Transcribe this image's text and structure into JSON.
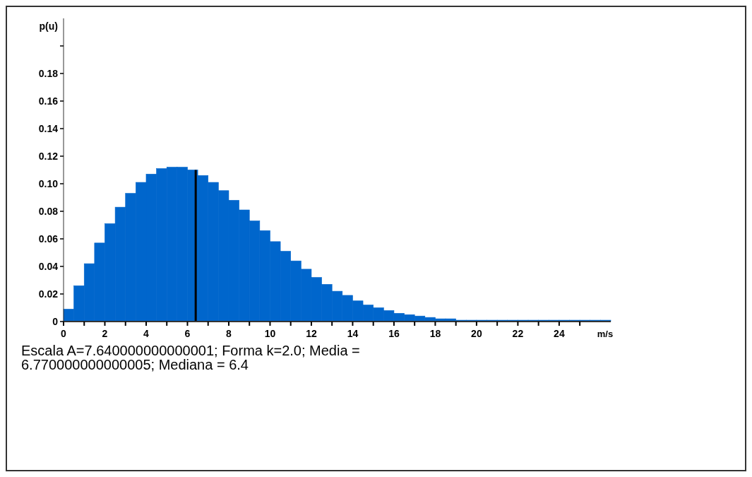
{
  "chart_data": {
    "type": "histogram",
    "xlabel": "m/s",
    "ylabel": "p(u)",
    "color": "#0066cc",
    "bins": [
      0,
      0.5,
      1,
      1.5,
      2,
      2.5,
      3,
      3.5,
      4,
      4.5,
      5,
      5.5,
      6,
      6.5,
      7,
      7.5,
      8,
      8.5,
      9,
      9.5,
      10,
      10.5,
      11,
      11.5,
      12,
      12.5,
      13,
      13.5,
      14,
      14.5,
      15,
      15.5,
      16,
      16.5,
      17,
      17.5,
      18,
      18.5,
      19,
      19.5,
      20,
      20.5,
      21,
      21.5,
      22,
      22.5,
      23,
      23.5,
      24,
      24.5,
      25,
      25.5,
      26,
      26.5
    ],
    "values": [
      0.009,
      0.026,
      0.042,
      0.057,
      0.071,
      0.083,
      0.093,
      0.101,
      0.107,
      0.111,
      0.112,
      0.112,
      0.11,
      0.106,
      0.101,
      0.095,
      0.088,
      0.081,
      0.073,
      0.066,
      0.058,
      0.051,
      0.044,
      0.038,
      0.032,
      0.027,
      0.022,
      0.019,
      0.015,
      0.012,
      0.01,
      0.008,
      0.006,
      0.005,
      0.004,
      0.003,
      0.002,
      0.002,
      0.001,
      0.001,
      0.001,
      0.001,
      0.001,
      0.001,
      0.001,
      0.001,
      0.001,
      0.001,
      0.001,
      0.001,
      0.001,
      0.001,
      0.001
    ],
    "xlim": [
      0,
      26.5
    ],
    "xticks": [
      0,
      {
        "value": 1,
        "label": null
      },
      2,
      {
        "value": 3,
        "label": null
      },
      4,
      {
        "value": 5,
        "label": null
      },
      6,
      {
        "value": 7,
        "label": null
      },
      8,
      {
        "value": 9,
        "label": null
      },
      10,
      {
        "value": 11,
        "label": null
      },
      12,
      {
        "value": 13,
        "label": null
      },
      14,
      {
        "value": 15,
        "label": null
      },
      16,
      {
        "value": 17,
        "label": null
      },
      18,
      {
        "value": 19,
        "label": null
      },
      20,
      {
        "value": 21,
        "label": null
      },
      22,
      {
        "value": 23,
        "label": null
      },
      24,
      {
        "value": 25,
        "label": null
      }
    ],
    "ylim": [
      0,
      0.22
    ],
    "yticks": [
      0,
      0.02,
      0.04,
      0.06,
      0.08,
      {
        "value": 0.1,
        "label": "0.10"
      },
      0.12,
      0.14,
      0.16,
      0.18,
      {
        "value": 0.2,
        "label": null
      }
    ],
    "ref_lines": [
      {
        "axis": "x",
        "value": 6.4,
        "color": "#000000"
      }
    ],
    "annotations": [
      "Escala A=7.640000000000001; Forma k=2.0; Media = 6.770000000000005; Mediana = 6.4"
    ]
  }
}
